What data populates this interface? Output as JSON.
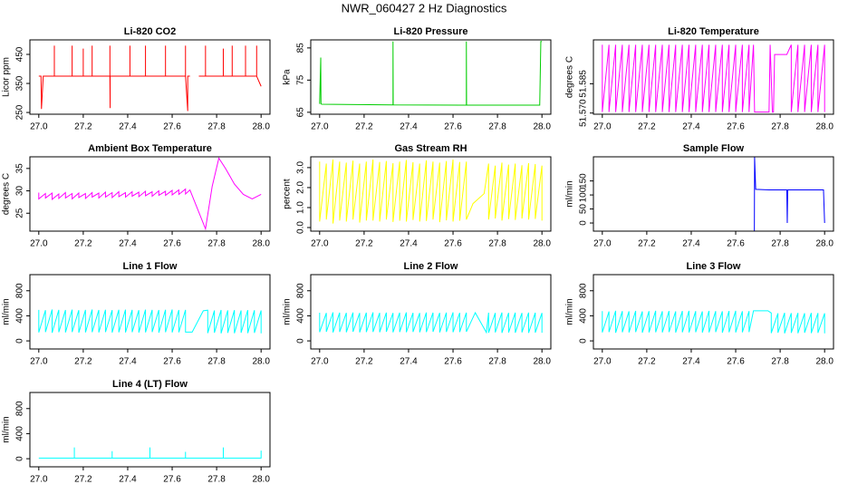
{
  "title": "NWR_060427  2 Hz Diagnostics",
  "chart_data": [
    {
      "type": "line",
      "title": "Li-820 CO2",
      "y_label": "Licor ppm",
      "color": "#ff0000",
      "xlim": [
        26.96,
        28.04
      ],
      "ylim": [
        244,
        500
      ],
      "xticks": [
        {
          "value": 27,
          "label": "27.0"
        },
        27.2,
        27.4,
        27.6,
        27.8,
        {
          "value": 28,
          "label": "28.0"
        }
      ],
      "yticks": [
        250,
        350,
        450
      ],
      "x": [
        27.0,
        27.01,
        27.012,
        27.02,
        27.07,
        27.07,
        27.07,
        27.15,
        27.15,
        27.15,
        27.2,
        27.2,
        27.2,
        27.24,
        27.24,
        27.24,
        27.32,
        27.32,
        27.32,
        27.321,
        27.321,
        27.41,
        27.41,
        27.41,
        27.48,
        27.48,
        27.48,
        27.57,
        27.57,
        27.57,
        27.66,
        27.66,
        27.66,
        27.67,
        27.67,
        27.68,
        27.7,
        27.72,
        27.75,
        27.75,
        27.75,
        27.83,
        27.83,
        27.83,
        27.87,
        27.87,
        27.87,
        27.93,
        27.93,
        27.93,
        27.98,
        27.98,
        27.98,
        28.0
      ],
      "values": [
        375,
        375,
        262,
        375,
        375,
        480,
        375,
        375,
        480,
        375,
        375,
        470,
        375,
        375,
        480,
        375,
        375,
        480,
        375,
        265,
        375,
        375,
        480,
        375,
        375,
        480,
        375,
        375,
        480,
        375,
        375,
        480,
        375,
        255,
        375,
        375,
        null,
        375,
        375,
        480,
        375,
        375,
        470,
        375,
        375,
        480,
        375,
        375,
        480,
        375,
        375,
        480,
        375,
        340
      ]
    },
    {
      "type": "line",
      "title": "Li-820 Pressure",
      "y_label": "kPa",
      "color": "#00cd00",
      "xlim": [
        26.96,
        28.04
      ],
      "ylim": [
        64.4,
        87.5
      ],
      "xticks": [
        {
          "value": 27,
          "label": "27.0"
        },
        27.2,
        27.4,
        27.6,
        27.8,
        {
          "value": 28,
          "label": "28.0"
        }
      ],
      "yticks": [
        65,
        75,
        85
      ],
      "x": [
        27.0,
        27.005,
        27.006,
        27.01,
        27.33,
        27.33,
        27.331,
        27.66,
        27.66,
        27.661,
        27.99,
        27.995,
        28.0
      ],
      "values": [
        67.6,
        82,
        67.6,
        67.5,
        67.3,
        87,
        67.3,
        67.2,
        87,
        67.2,
        67.2,
        87,
        87
      ]
    },
    {
      "type": "line",
      "title": "Li-820 Temperature",
      "y_label": "degrees C",
      "color": "#ff00ff",
      "xlim": [
        26.96,
        28.04
      ],
      "ylim": [
        51.5694,
        51.6075
      ],
      "xticks": [
        {
          "value": 27,
          "label": "27.0"
        },
        27.2,
        27.4,
        27.6,
        27.8,
        {
          "value": 28,
          "label": "28.0"
        }
      ],
      "yticks": [
        {
          "value": 51.57,
          "label": "51.570"
        },
        {
          "value": 51.585,
          "label": "51.585"
        }
      ],
      "x": [
        27,
        27,
        27.03,
        27.03,
        27.06,
        27.06,
        27.09,
        27.09,
        27.12,
        27.12,
        27.15,
        27.15,
        27.18,
        27.18,
        27.21,
        27.21,
        27.24,
        27.24,
        27.27,
        27.27,
        27.3,
        27.3,
        27.33,
        27.33,
        27.36,
        27.36,
        27.39,
        27.39,
        27.42,
        27.42,
        27.45,
        27.45,
        27.48,
        27.48,
        27.51,
        27.51,
        27.54,
        27.54,
        27.57,
        27.57,
        27.6,
        27.6,
        27.63,
        27.63,
        27.66,
        27.66,
        27.68,
        27.685,
        27.75,
        27.755,
        27.765,
        27.77,
        27.775,
        27.83,
        27.85,
        27.85,
        27.88,
        27.88,
        27.91,
        27.91,
        27.94,
        27.94,
        27.97,
        27.97,
        28,
        28
      ],
      "values": [
        51.605,
        51.5705,
        51.605,
        51.5705,
        51.605,
        51.5705,
        51.605,
        51.5705,
        51.605,
        51.5705,
        51.605,
        51.5705,
        51.605,
        51.5705,
        51.605,
        51.5705,
        51.605,
        51.5705,
        51.605,
        51.5705,
        51.605,
        51.5705,
        51.605,
        51.5705,
        51.605,
        51.5705,
        51.605,
        51.5705,
        51.605,
        51.5705,
        51.605,
        51.5705,
        51.605,
        51.5705,
        51.605,
        51.5705,
        51.605,
        51.5705,
        51.605,
        51.5705,
        51.605,
        51.5705,
        51.605,
        51.5705,
        51.605,
        51.5705,
        51.605,
        51.5705,
        51.5705,
        51.605,
        51.5705,
        51.5705,
        51.6,
        51.6,
        51.605,
        51.5705,
        51.605,
        51.5705,
        51.605,
        51.5705,
        51.605,
        51.5705,
        51.605,
        51.5705,
        51.605,
        51.5705
      ]
    },
    {
      "type": "line",
      "title": "Ambient Box Temperature",
      "y_label": "degrees C",
      "color": "#ff00ff",
      "xlim": [
        26.96,
        28.04
      ],
      "ylim": [
        21.0,
        37.6
      ],
      "xticks": [
        {
          "value": 27,
          "label": "27.0"
        },
        27.2,
        27.4,
        27.6,
        27.8,
        {
          "value": 28,
          "label": "28.0"
        }
      ],
      "yticks": [
        25,
        30,
        35
      ],
      "x": [
        27,
        27,
        27.03,
        27.03,
        27.06,
        27.06,
        27.09,
        27.09,
        27.12,
        27.12,
        27.15,
        27.15,
        27.18,
        27.18,
        27.21,
        27.21,
        27.24,
        27.24,
        27.27,
        27.27,
        27.3,
        27.3,
        27.33,
        27.33,
        27.36,
        27.36,
        27.39,
        27.39,
        27.42,
        27.42,
        27.45,
        27.45,
        27.48,
        27.48,
        27.51,
        27.51,
        27.54,
        27.54,
        27.57,
        27.57,
        27.6,
        27.6,
        27.63,
        27.63,
        27.66,
        27.66,
        27.68,
        27.75,
        27.78,
        27.81,
        27.84,
        27.88,
        27.92,
        27.96,
        28
      ],
      "values": [
        29.6,
        28.2,
        29.4,
        28.4,
        29.5,
        28.1,
        29.3,
        28.3,
        29.6,
        28.4,
        29.4,
        28.2,
        29.5,
        28.5,
        29.4,
        28.3,
        29.6,
        28.6,
        29.5,
        28.4,
        29.7,
        28.6,
        29.6,
        28.5,
        29.8,
        28.7,
        29.6,
        28.6,
        29.8,
        28.8,
        29.7,
        28.7,
        29.9,
        28.9,
        29.8,
        28.8,
        30,
        29,
        29.9,
        29,
        30.1,
        29.1,
        30.2,
        29.2,
        30.4,
        29.3,
        30.2,
        21.5,
        31,
        37.3,
        35,
        31.5,
        29.2,
        28.2,
        29.2
      ]
    },
    {
      "type": "line",
      "title": "Gas Stream RH",
      "y_label": "percent",
      "color": "#ffff00",
      "xlim": [
        26.96,
        28.04
      ],
      "ylim": [
        -0.18,
        3.54
      ],
      "xticks": [
        {
          "value": 27,
          "label": "27.0"
        },
        27.2,
        27.4,
        27.6,
        27.8,
        {
          "value": 28,
          "label": "28.0"
        }
      ],
      "yticks": [
        {
          "value": 0,
          "label": "0.0"
        },
        {
          "value": 1,
          "label": "1.0"
        },
        {
          "value": 2,
          "label": "2.0"
        },
        {
          "value": 3,
          "label": "3.0"
        }
      ],
      "x": [
        27,
        27,
        27.03,
        27.03,
        27.06,
        27.06,
        27.09,
        27.09,
        27.12,
        27.12,
        27.15,
        27.15,
        27.18,
        27.18,
        27.21,
        27.21,
        27.24,
        27.24,
        27.27,
        27.27,
        27.3,
        27.3,
        27.33,
        27.33,
        27.36,
        27.36,
        27.39,
        27.39,
        27.42,
        27.42,
        27.45,
        27.45,
        27.48,
        27.48,
        27.51,
        27.51,
        27.54,
        27.54,
        27.57,
        27.57,
        27.6,
        27.6,
        27.63,
        27.63,
        27.66,
        27.66,
        27.69,
        27.74,
        27.76,
        27.76,
        27.79,
        27.79,
        27.82,
        27.82,
        27.85,
        27.85,
        27.88,
        27.88,
        27.91,
        27.91,
        27.94,
        27.94,
        27.97,
        27.97,
        28,
        28
      ],
      "values": [
        3.3,
        0.3,
        3.2,
        0.4,
        3.4,
        0.2,
        3.3,
        0.35,
        3.25,
        0.3,
        3.35,
        0.4,
        3.2,
        0.25,
        3.3,
        0.35,
        3.4,
        0.35,
        3.28,
        0.3,
        3.33,
        0.4,
        3.22,
        0.28,
        3.3,
        0.34,
        3.38,
        0.3,
        3.27,
        0.38,
        3.2,
        0.3,
        3.36,
        0.33,
        3.3,
        0.4,
        3.25,
        0.27,
        3.33,
        0.36,
        3.4,
        0.3,
        3.28,
        0.34,
        3.3,
        0.4,
        1.2,
        1.7,
        3.2,
        0.4,
        3.1,
        0.45,
        3.25,
        0.35,
        3.15,
        0.42,
        3.2,
        0.38,
        3.12,
        0.45,
        3.22,
        0.4,
        3.18,
        0.43,
        3.1,
        0.35
      ]
    },
    {
      "type": "line",
      "title": "Sample Flow",
      "y_label": "ml/min",
      "color": "#0000ff",
      "xlim": [
        26.96,
        28.04
      ],
      "ylim": [
        -29,
        236
      ],
      "xticks": [
        {
          "value": 27,
          "label": "27.0"
        },
        27.2,
        27.4,
        27.6,
        27.8,
        {
          "value": 28,
          "label": "28.0"
        }
      ],
      "yticks": [
        0,
        50,
        100,
        150
      ],
      "x": [
        27.684,
        27.685,
        27.69,
        27.75,
        27.83,
        27.832,
        27.834,
        27.995,
        28.0
      ],
      "values": [
        -29,
        236,
        120,
        118,
        118,
        0,
        118,
        118,
        0
      ]
    },
    {
      "type": "line",
      "title": "Line 1 Flow",
      "y_label": "ml/min",
      "color": "#00ffff",
      "xlim": [
        26.96,
        28.04
      ],
      "ylim": [
        -129,
        1057
      ],
      "xticks": [
        {
          "value": 27,
          "label": "27.0"
        },
        27.2,
        27.4,
        27.6,
        27.8,
        {
          "value": 28,
          "label": "28.0"
        }
      ],
      "yticks": [
        0,
        400,
        800
      ],
      "x": [
        27,
        27,
        27.03,
        27.03,
        27.06,
        27.06,
        27.09,
        27.09,
        27.12,
        27.12,
        27.15,
        27.15,
        27.18,
        27.18,
        27.21,
        27.21,
        27.24,
        27.24,
        27.27,
        27.27,
        27.3,
        27.3,
        27.33,
        27.33,
        27.36,
        27.36,
        27.39,
        27.39,
        27.42,
        27.42,
        27.45,
        27.45,
        27.48,
        27.48,
        27.51,
        27.51,
        27.54,
        27.54,
        27.57,
        27.57,
        27.6,
        27.6,
        27.63,
        27.63,
        27.66,
        27.66,
        27.69,
        27.74,
        27.76,
        27.76,
        27.79,
        27.79,
        27.82,
        27.82,
        27.85,
        27.85,
        27.88,
        27.88,
        27.91,
        27.91,
        27.94,
        27.94,
        27.97,
        27.97,
        28,
        28
      ],
      "values": [
        495,
        135,
        490,
        140,
        500,
        130,
        495,
        138,
        492,
        135,
        498,
        140,
        490,
        132,
        495,
        136,
        500,
        138,
        493,
        135,
        497,
        140,
        491,
        133,
        496,
        137,
        499,
        135,
        494,
        139,
        490,
        134,
        498,
        136,
        495,
        140,
        492,
        131,
        497,
        138,
        500,
        135,
        493,
        137,
        495,
        140,
        140,
        480,
        490,
        125,
        485,
        130,
        492,
        120,
        488,
        128,
        490,
        122,
        486,
        130,
        491,
        125,
        489,
        128,
        485,
        120
      ]
    },
    {
      "type": "line",
      "title": "Line 2 Flow",
      "y_label": "ml/min",
      "color": "#00ffff",
      "xlim": [
        26.96,
        28.04
      ],
      "ylim": [
        -129,
        1057
      ],
      "xticks": [
        {
          "value": 27,
          "label": "27.0"
        },
        27.2,
        27.4,
        27.6,
        27.8,
        {
          "value": 28,
          "label": "28.0"
        }
      ],
      "yticks": [
        0,
        400,
        800
      ],
      "x": [
        27,
        27,
        27.03,
        27.03,
        27.06,
        27.06,
        27.09,
        27.09,
        27.12,
        27.12,
        27.15,
        27.15,
        27.18,
        27.18,
        27.21,
        27.21,
        27.24,
        27.24,
        27.27,
        27.27,
        27.3,
        27.3,
        27.33,
        27.33,
        27.36,
        27.36,
        27.39,
        27.39,
        27.42,
        27.42,
        27.45,
        27.45,
        27.48,
        27.48,
        27.51,
        27.51,
        27.54,
        27.54,
        27.57,
        27.57,
        27.6,
        27.6,
        27.63,
        27.63,
        27.66,
        27.66,
        27.7,
        27.75,
        27.76,
        27.76,
        27.79,
        27.79,
        27.82,
        27.82,
        27.85,
        27.85,
        27.88,
        27.88,
        27.91,
        27.91,
        27.94,
        27.94,
        27.97,
        27.97,
        28,
        28
      ],
      "values": [
        450,
        140,
        445,
        145,
        455,
        135,
        450,
        142,
        448,
        138,
        452,
        145,
        446,
        136,
        450,
        140,
        455,
        142,
        447,
        138,
        451,
        145,
        446,
        137,
        450,
        141,
        454,
        139,
        448,
        143,
        445,
        137,
        452,
        140,
        450,
        145,
        447,
        135,
        451,
        142,
        455,
        139,
        448,
        141,
        450,
        145,
        450,
        135,
        450,
        130,
        445,
        135,
        452,
        128,
        448,
        133,
        450,
        130,
        446,
        135,
        451,
        128,
        449,
        132,
        445,
        130
      ]
    },
    {
      "type": "line",
      "title": "Line 3 Flow",
      "y_label": "ml/min",
      "color": "#00ffff",
      "xlim": [
        26.96,
        28.04
      ],
      "ylim": [
        -129,
        1057
      ],
      "xticks": [
        {
          "value": 27,
          "label": "27.0"
        },
        27.2,
        27.4,
        27.6,
        27.8,
        {
          "value": 28,
          "label": "28.0"
        }
      ],
      "yticks": [
        0,
        400,
        800
      ],
      "x": [
        27,
        27,
        27.03,
        27.03,
        27.06,
        27.06,
        27.09,
        27.09,
        27.12,
        27.12,
        27.15,
        27.15,
        27.18,
        27.18,
        27.21,
        27.21,
        27.24,
        27.24,
        27.27,
        27.27,
        27.3,
        27.3,
        27.33,
        27.33,
        27.36,
        27.36,
        27.39,
        27.39,
        27.42,
        27.42,
        27.45,
        27.45,
        27.48,
        27.48,
        27.51,
        27.51,
        27.54,
        27.54,
        27.57,
        27.57,
        27.6,
        27.6,
        27.63,
        27.63,
        27.66,
        27.66,
        27.68,
        27.745,
        27.76,
        27.76,
        27.76,
        27.79,
        27.79,
        27.82,
        27.82,
        27.85,
        27.85,
        27.88,
        27.88,
        27.91,
        27.91,
        27.94,
        27.94,
        27.97,
        27.97,
        28,
        28
      ],
      "values": [
        475,
        135,
        470,
        140,
        480,
        130,
        475,
        138,
        472,
        135,
        478,
        140,
        470,
        132,
        475,
        136,
        480,
        138,
        473,
        135,
        477,
        140,
        471,
        133,
        476,
        137,
        479,
        135,
        474,
        139,
        470,
        134,
        478,
        136,
        475,
        140,
        472,
        131,
        477,
        138,
        480,
        135,
        473,
        137,
        475,
        140,
        480,
        480,
        445,
        445,
        125,
        440,
        130,
        447,
        120,
        443,
        128,
        445,
        122,
        441,
        130,
        446,
        125,
        444,
        128,
        440,
        120
      ]
    },
    {
      "type": "line",
      "title": "Line 4 (LT) Flow",
      "y_label": "ml/min",
      "color": "#00ffff",
      "xlim": [
        26.96,
        28.04
      ],
      "ylim": [
        -129,
        1057
      ],
      "xticks": [
        {
          "value": 27,
          "label": "27.0"
        },
        27.2,
        27.4,
        27.6,
        27.8,
        {
          "value": 28,
          "label": "28.0"
        }
      ],
      "yticks": [
        0,
        400,
        800
      ],
      "x": [
        27,
        27.16,
        27.16,
        27.16,
        27.33,
        27.33,
        27.33,
        27.5,
        27.5,
        27.5,
        27.66,
        27.66,
        27.66,
        27.83,
        27.83,
        27.83,
        28.0,
        28.0
      ],
      "values": [
        10,
        10,
        180,
        10,
        10,
        120,
        10,
        10,
        180,
        10,
        10,
        110,
        10,
        10,
        180,
        10,
        10,
        130
      ]
    }
  ]
}
